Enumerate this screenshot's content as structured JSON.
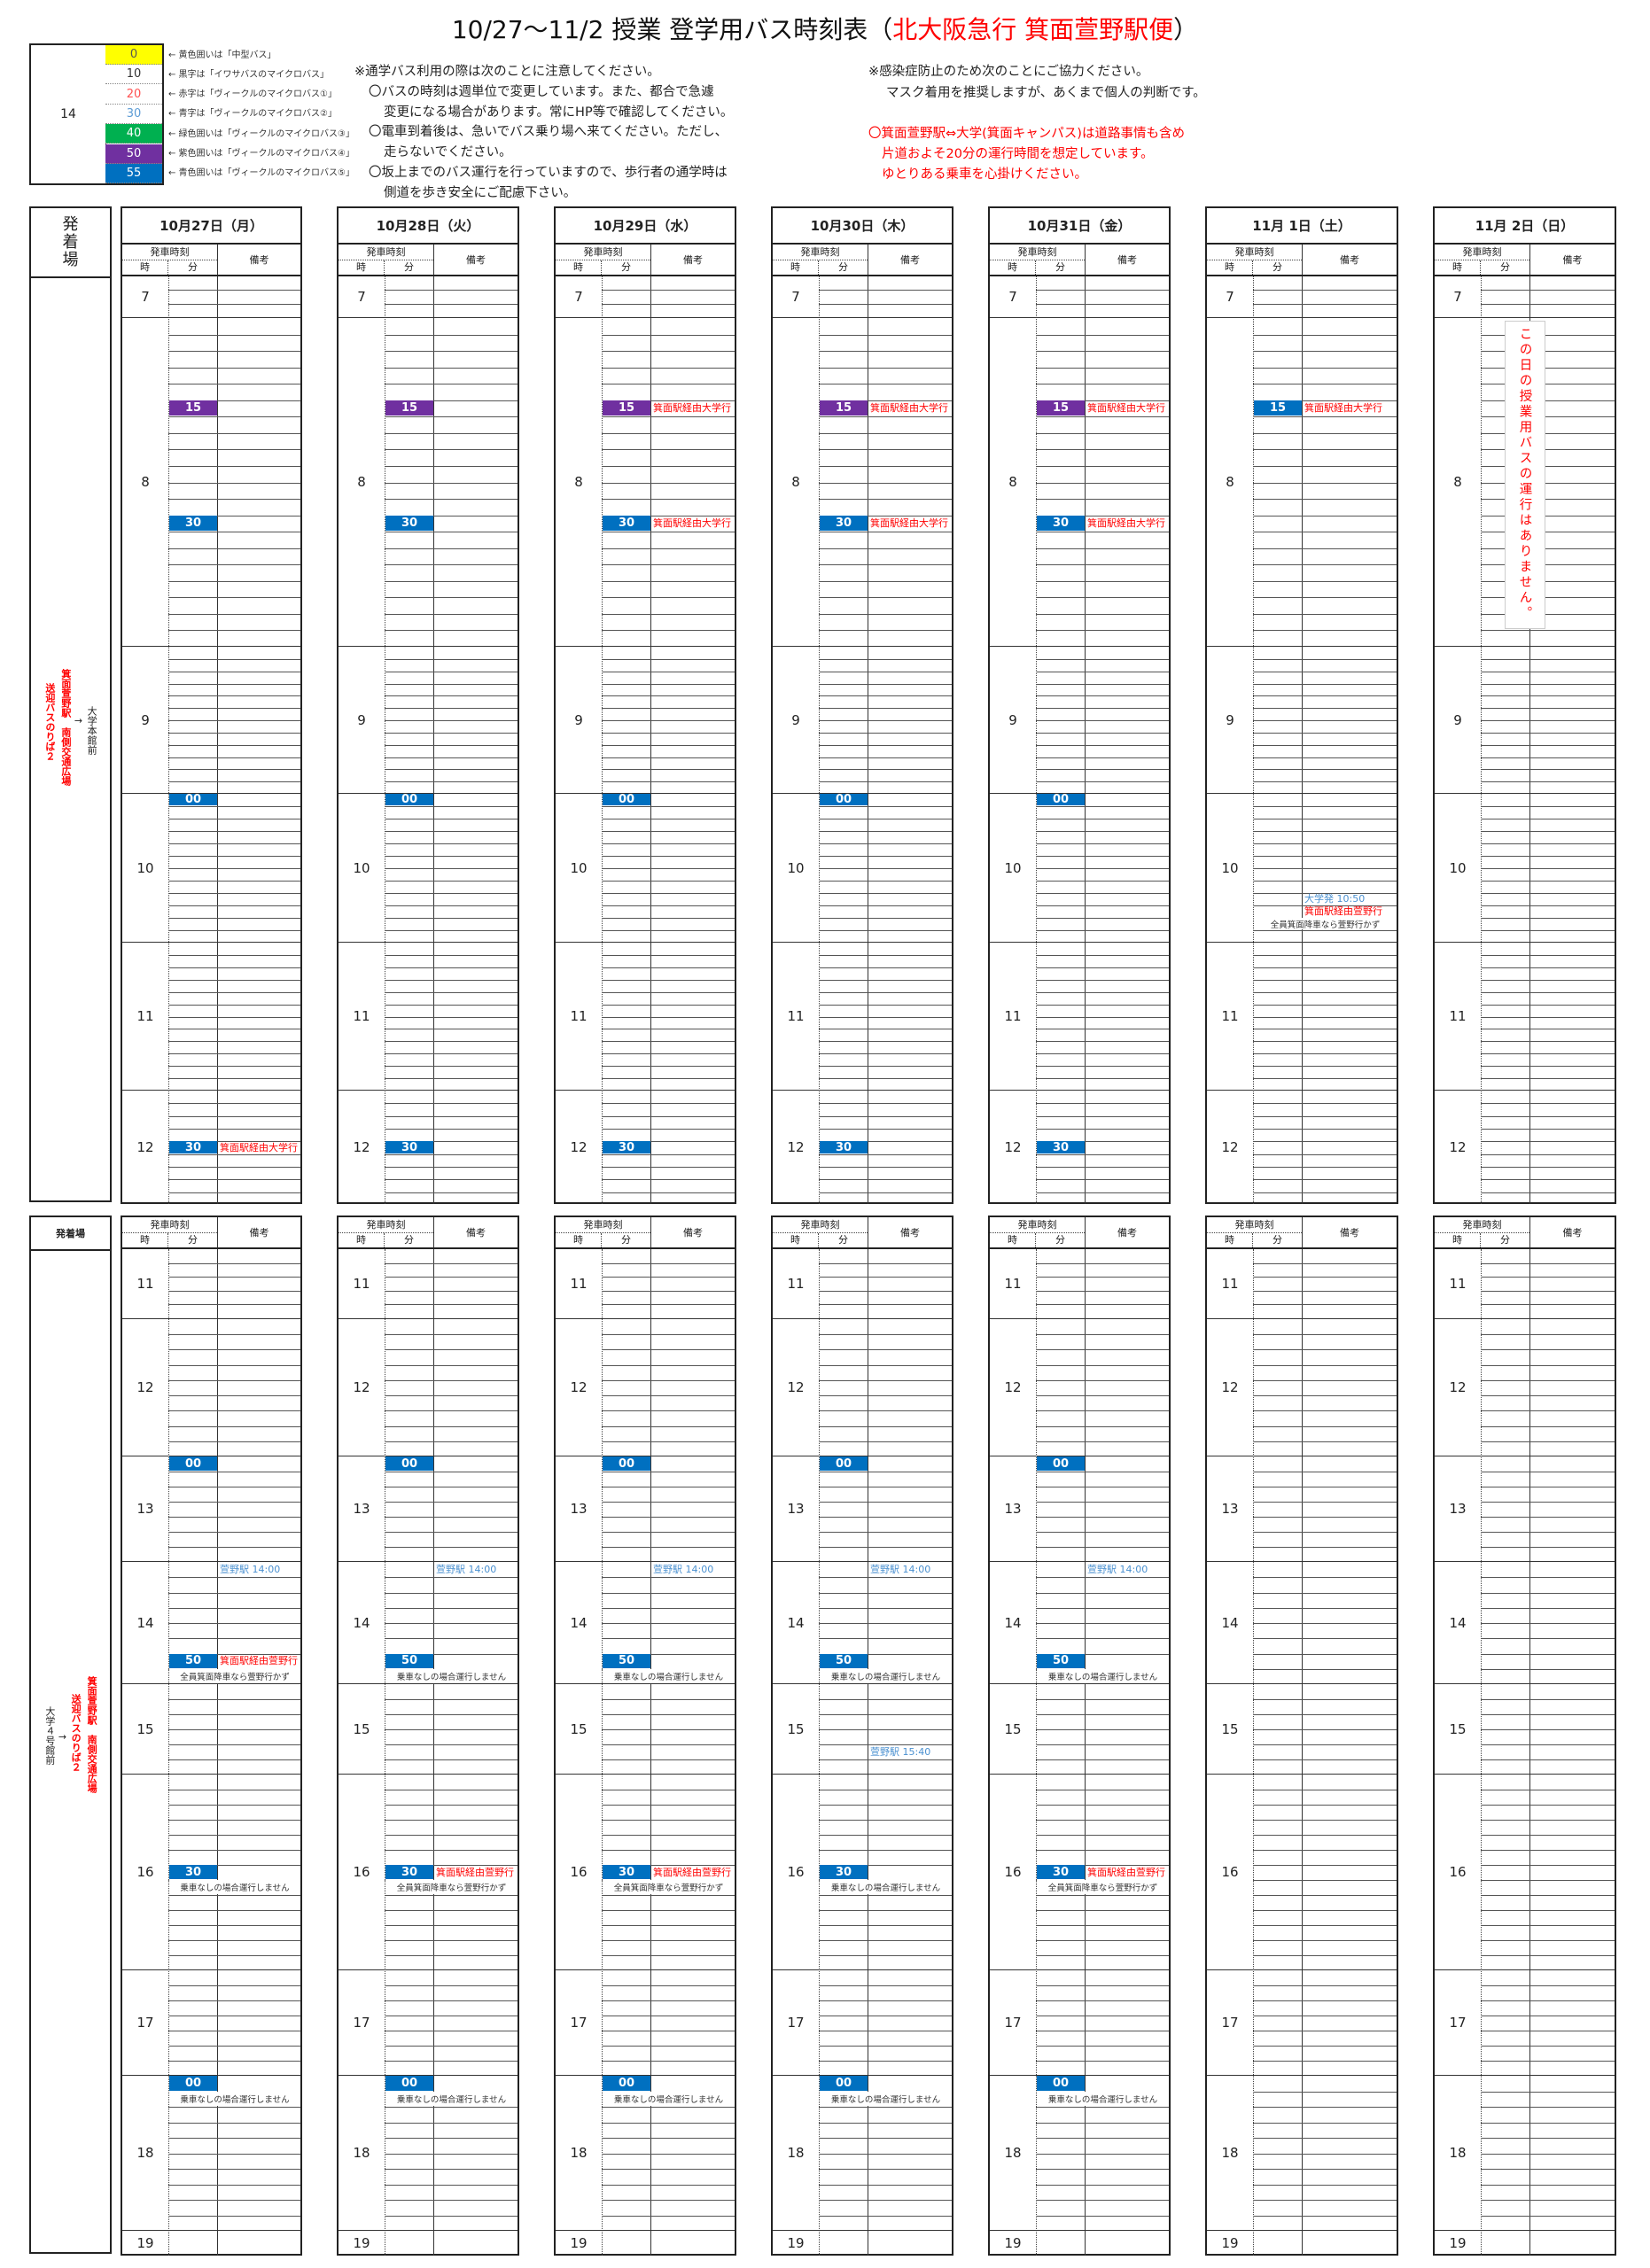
{
  "title": {
    "main": "10/27～11/2 授業 登学用バス時刻表（",
    "highlight": "北大阪急行 箕面萱野駅便",
    "close": "）"
  },
  "legend": {
    "hour": "14",
    "items": [
      {
        "minute": "0",
        "label": "← 黄色囲いは「中型バス」",
        "bg": "#ffff00",
        "fg": "#555555"
      },
      {
        "minute": "10",
        "label": "← 黒字は「イワサバスのマイクロバス」",
        "bg": "#ffffff",
        "fg": "#333333"
      },
      {
        "minute": "20",
        "label": "← 赤字は「ヴィークルのマイクロバス①」",
        "bg": "#ffffff",
        "fg": "#ff5050"
      },
      {
        "minute": "30",
        "label": "← 青字は「ヴィークルのマイクロバス②」",
        "bg": "#ffffff",
        "fg": "#5b9bd5"
      },
      {
        "minute": "40",
        "label": "← 緑色囲いは「ヴィークルのマイクロバス③」",
        "bg": "#00b050",
        "fg": "#ffffff"
      },
      {
        "minute": "50",
        "label": "← 紫色囲いは「ヴィークルのマイクロバス④」",
        "bg": "#7030a0",
        "fg": "#ffffff"
      },
      {
        "minute": "55",
        "label": "← 青色囲いは「ヴィークルのマイクロバス⑤」",
        "bg": "#0070c0",
        "fg": "#ffffff"
      }
    ]
  },
  "notes_left": [
    "※通学バス利用の際は次のことに注意してください。",
    "〇バスの時刻は週単位で変更しています。また、都合で急遽",
    "変更になる場合があります。常にHP等で確認してください。",
    "〇電車到着後は、急いでバス乗り場へ来てください。ただし、",
    "走らないでください。",
    "〇坂上までのバス運行を行っていますので、歩行者の通学時は",
    "側道を歩き安全にご配慮下さい。"
  ],
  "notes_right": [
    "※感染症防止のため次のことにご協力ください。",
    "マスク着用を推奨しますが、あくまで個人の判断です。"
  ],
  "notes_red": [
    "〇箕面萱野駅⇔大学(箕面キャンパス)は道路事情も含め",
    "片道およそ20分の運行時間を想定しています。",
    "ゆとりある乗車を心掛けください。"
  ],
  "left_labels": {
    "top_header": "発着場",
    "bottom_header": "発着場",
    "top_route": {
      "from": "箕面萱野駅　南側交通広場",
      "from2": "送迎バスのりば２",
      "arrow": "→",
      "to": "大学本館前"
    },
    "bottom_route": {
      "from": "大学４号館前",
      "arrow": "→",
      "to": "箕面萱野駅　南側交通広場",
      "to2": "送迎バスのりば２"
    }
  },
  "subheader": {
    "time": "発車時刻",
    "hour": "時",
    "minute": "分",
    "note": "備考"
  },
  "hours": {
    "top": [
      7,
      8,
      9,
      10,
      11,
      12
    ],
    "bottom": [
      11,
      12,
      13,
      14,
      15,
      16,
      17,
      18,
      19
    ]
  },
  "colors": {
    "purple": "#7030a0",
    "blue": "#0070c0",
    "red": "#ff0000",
    "lightblue": "#4a90d0"
  },
  "days": [
    {
      "date": "10月27日（月）",
      "top": [
        {
          "hour": 8,
          "pos": 15,
          "minute": "15",
          "color": "purple"
        },
        {
          "hour": 8,
          "pos": 30,
          "minute": "30",
          "color": "blue"
        },
        {
          "hour": 10,
          "pos": 0,
          "minute": "00",
          "color": "blue"
        },
        {
          "hour": 12,
          "pos": 30,
          "minute": "30",
          "color": "blue",
          "note": "箕面駅経由大学行",
          "note_color": "red"
        }
      ],
      "bottom": [
        {
          "hour": 13,
          "pos": 0,
          "minute": "00",
          "color": "blue"
        },
        {
          "hour": 14,
          "pos": 0,
          "note": "萱野駅 14:00",
          "note_color": "lightblue"
        },
        {
          "hour": 14,
          "pos": 50,
          "minute": "50",
          "color": "blue",
          "note": "箕面駅経由萱野行",
          "note_color": "red",
          "remark": "全員箕面降車なら萱野行かず"
        },
        {
          "hour": 16,
          "pos": 30,
          "minute": "30",
          "color": "blue",
          "remark": "乗車なしの場合運行しません"
        },
        {
          "hour": 18,
          "pos": 0,
          "minute": "00",
          "color": "blue",
          "remark": "乗車なしの場合運行しません"
        }
      ]
    },
    {
      "date": "10月28日（火）",
      "top": [
        {
          "hour": 8,
          "pos": 15,
          "minute": "15",
          "color": "purple"
        },
        {
          "hour": 8,
          "pos": 30,
          "minute": "30",
          "color": "blue"
        },
        {
          "hour": 10,
          "pos": 0,
          "minute": "00",
          "color": "blue"
        },
        {
          "hour": 12,
          "pos": 30,
          "minute": "30",
          "color": "blue"
        }
      ],
      "bottom": [
        {
          "hour": 13,
          "pos": 0,
          "minute": "00",
          "color": "blue"
        },
        {
          "hour": 14,
          "pos": 0,
          "note": "萱野駅 14:00",
          "note_color": "lightblue"
        },
        {
          "hour": 14,
          "pos": 50,
          "minute": "50",
          "color": "blue",
          "remark": "乗車なしの場合運行しません"
        },
        {
          "hour": 16,
          "pos": 30,
          "minute": "30",
          "color": "blue",
          "note": "箕面駅経由萱野行",
          "note_color": "red",
          "remark": "全員箕面降車なら萱野行かず"
        },
        {
          "hour": 18,
          "pos": 0,
          "minute": "00",
          "color": "blue",
          "remark": "乗車なしの場合運行しません"
        }
      ]
    },
    {
      "date": "10月29日（水）",
      "top": [
        {
          "hour": 8,
          "pos": 15,
          "minute": "15",
          "color": "purple",
          "note": "箕面駅経由大学行",
          "note_color": "red"
        },
        {
          "hour": 8,
          "pos": 30,
          "minute": "30",
          "color": "blue",
          "note": "箕面駅経由大学行",
          "note_color": "red"
        },
        {
          "hour": 10,
          "pos": 0,
          "minute": "00",
          "color": "blue"
        },
        {
          "hour": 12,
          "pos": 30,
          "minute": "30",
          "color": "blue"
        }
      ],
      "bottom": [
        {
          "hour": 13,
          "pos": 0,
          "minute": "00",
          "color": "blue"
        },
        {
          "hour": 14,
          "pos": 0,
          "note": "萱野駅 14:00",
          "note_color": "lightblue"
        },
        {
          "hour": 14,
          "pos": 50,
          "minute": "50",
          "color": "blue",
          "remark": "乗車なしの場合運行しません"
        },
        {
          "hour": 16,
          "pos": 30,
          "minute": "30",
          "color": "blue",
          "note": "箕面駅経由萱野行",
          "note_color": "red",
          "remark": "全員箕面降車なら萱野行かず"
        },
        {
          "hour": 18,
          "pos": 0,
          "minute": "00",
          "color": "blue",
          "remark": "乗車なしの場合運行しません"
        }
      ]
    },
    {
      "date": "10月30日（木）",
      "top": [
        {
          "hour": 8,
          "pos": 15,
          "minute": "15",
          "color": "purple",
          "note": "箕面駅経由大学行",
          "note_color": "red"
        },
        {
          "hour": 8,
          "pos": 30,
          "minute": "30",
          "color": "blue",
          "note": "箕面駅経由大学行",
          "note_color": "red"
        },
        {
          "hour": 10,
          "pos": 0,
          "minute": "00",
          "color": "blue"
        },
        {
          "hour": 12,
          "pos": 30,
          "minute": "30",
          "color": "blue"
        }
      ],
      "bottom": [
        {
          "hour": 13,
          "pos": 0,
          "minute": "00",
          "color": "blue"
        },
        {
          "hour": 14,
          "pos": 0,
          "note": "萱野駅 14:00",
          "note_color": "lightblue"
        },
        {
          "hour": 14,
          "pos": 50,
          "minute": "50",
          "color": "blue",
          "remark": "乗車なしの場合運行しません"
        },
        {
          "hour": 15,
          "pos": 40,
          "note": "萱野駅 15:40",
          "note_color": "lightblue"
        },
        {
          "hour": 16,
          "pos": 30,
          "minute": "30",
          "color": "blue",
          "remark": "乗車なしの場合運行しません"
        },
        {
          "hour": 18,
          "pos": 0,
          "minute": "00",
          "color": "blue",
          "remark": "乗車なしの場合運行しません"
        }
      ]
    },
    {
      "date": "10月31日（金）",
      "top": [
        {
          "hour": 8,
          "pos": 15,
          "minute": "15",
          "color": "purple",
          "note": "箕面駅経由大学行",
          "note_color": "red"
        },
        {
          "hour": 8,
          "pos": 30,
          "minute": "30",
          "color": "blue",
          "note": "箕面駅経由大学行",
          "note_color": "red"
        },
        {
          "hour": 10,
          "pos": 0,
          "minute": "00",
          "color": "blue"
        },
        {
          "hour": 12,
          "pos": 30,
          "minute": "30",
          "color": "blue"
        }
      ],
      "bottom": [
        {
          "hour": 13,
          "pos": 0,
          "minute": "00",
          "color": "blue"
        },
        {
          "hour": 14,
          "pos": 0,
          "note": "萱野駅 14:00",
          "note_color": "lightblue"
        },
        {
          "hour": 14,
          "pos": 50,
          "minute": "50",
          "color": "blue",
          "remark": "乗車なしの場合運行しません"
        },
        {
          "hour": 16,
          "pos": 30,
          "minute": "30",
          "color": "blue",
          "note": "箕面駅経由萱野行",
          "note_color": "red",
          "remark": "全員箕面降車なら萱野行かず"
        },
        {
          "hour": 18,
          "pos": 0,
          "minute": "00",
          "color": "blue",
          "remark": "乗車なしの場合運行しません"
        }
      ]
    },
    {
      "date": "11月 1日（土）",
      "top": [
        {
          "hour": 8,
          "pos": 15,
          "minute": "15",
          "color": "blue",
          "note": "箕面駅経由大学行",
          "note_color": "red"
        },
        {
          "hour": 10,
          "pos": 50,
          "note": "大学発 10:50",
          "note_color": "lightblue",
          "note2": "箕面駅経由萱野行",
          "note2_color": "red",
          "remark": "全員箕面降車なら萱野行かず"
        }
      ],
      "bottom": []
    },
    {
      "date": "11月 2日（日）",
      "top": [],
      "bottom": [],
      "message": "この日の授業用バスの運行はありません。"
    }
  ]
}
